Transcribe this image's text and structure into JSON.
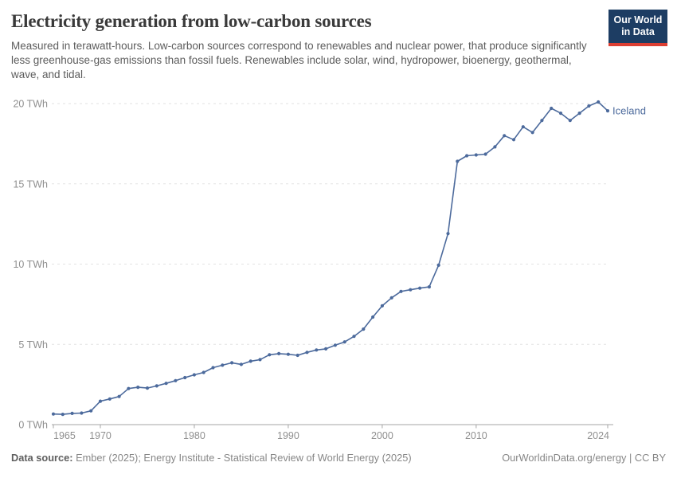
{
  "header": {
    "title": "Electricity generation from low-carbon sources",
    "subtitle": "Measured in terawatt-hours. Low-carbon sources correspond to renewables and nuclear power, that produce significantly less greenhouse-gas emissions than fossil fuels. Renewables include solar, wind, hydropower, bioenergy, geothermal, wave, and tidal.",
    "logo": {
      "line1": "Our World",
      "line2": "in Data",
      "bg": "#1d3d63",
      "accent": "#dc3e32"
    }
  },
  "chart_data": {
    "type": "line",
    "title": "Electricity generation from low-carbon sources",
    "unit": "TWh",
    "xlabel": "",
    "ylabel": "TWh",
    "xlim": [
      1965,
      2024
    ],
    "ylim": [
      0,
      20
    ],
    "grid": "horizontal-dashed",
    "legend_position": "end-of-line-label",
    "xticks": [
      1965,
      1970,
      1980,
      1990,
      2000,
      2010,
      2024
    ],
    "yticks": [
      0,
      5,
      10,
      15,
      20
    ],
    "ytick_suffix": " TWh",
    "entity_label": "Iceland",
    "series": [
      {
        "name": "Iceland",
        "color": "#4c6a9c",
        "x": [
          1965,
          1966,
          1967,
          1968,
          1969,
          1970,
          1971,
          1972,
          1973,
          1974,
          1975,
          1976,
          1977,
          1978,
          1979,
          1980,
          1981,
          1982,
          1983,
          1984,
          1985,
          1986,
          1987,
          1988,
          1989,
          1990,
          1991,
          1992,
          1993,
          1994,
          1995,
          1996,
          1997,
          1998,
          1999,
          2000,
          2001,
          2002,
          2003,
          2004,
          2005,
          2006,
          2007,
          2008,
          2009,
          2010,
          2011,
          2012,
          2013,
          2014,
          2015,
          2016,
          2017,
          2018,
          2019,
          2020,
          2021,
          2022,
          2023,
          2024
        ],
        "values": [
          0.66,
          0.64,
          0.7,
          0.72,
          0.86,
          1.46,
          1.6,
          1.75,
          2.25,
          2.33,
          2.28,
          2.41,
          2.57,
          2.74,
          2.93,
          3.1,
          3.25,
          3.55,
          3.7,
          3.85,
          3.75,
          3.95,
          4.05,
          4.35,
          4.42,
          4.38,
          4.32,
          4.5,
          4.65,
          4.72,
          4.95,
          5.15,
          5.5,
          5.95,
          6.7,
          7.4,
          7.9,
          8.3,
          8.4,
          8.5,
          8.58,
          9.93,
          11.9,
          16.4,
          16.75,
          16.8,
          16.85,
          17.3,
          18.0,
          17.75,
          18.55,
          18.2,
          18.95,
          19.7,
          19.4,
          18.95,
          19.4,
          19.85,
          20.1,
          19.55
        ]
      }
    ],
    "colors": {
      "line": "#4c6a9c",
      "gridline": "#e2e2e2",
      "axis": "#a5a5a5",
      "tick_label": "#8f8f8f",
      "entity_label": "#4c6a9c"
    }
  },
  "footer": {
    "datasource_label": "Data source:",
    "datasource": " Ember (2025); Energy Institute - Statistical Review of World Energy (2025)",
    "license": "OurWorldinData.org/energy | CC BY"
  }
}
